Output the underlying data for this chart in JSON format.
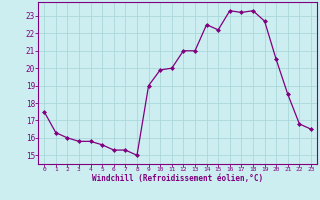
{
  "x": [
    0,
    1,
    2,
    3,
    4,
    5,
    6,
    7,
    8,
    9,
    10,
    11,
    12,
    13,
    14,
    15,
    16,
    17,
    18,
    19,
    20,
    21,
    22,
    23
  ],
  "y": [
    17.5,
    16.3,
    16.0,
    15.8,
    15.8,
    15.6,
    15.3,
    15.3,
    15.0,
    19.0,
    19.9,
    20.0,
    21.0,
    21.0,
    22.5,
    22.2,
    23.3,
    23.2,
    23.3,
    22.7,
    20.5,
    18.5,
    16.8,
    16.5
  ],
  "line_color": "#800080",
  "marker": "D",
  "marker_size": 2.0,
  "bg_color": "#cceef0",
  "grid_color": "#aad8da",
  "xlabel": "Windchill (Refroidissement éolien,°C)",
  "tick_color": "#800080",
  "ylim": [
    14.5,
    23.8
  ],
  "xlim": [
    -0.5,
    23.5
  ],
  "yticks": [
    15,
    16,
    17,
    18,
    19,
    20,
    21,
    22,
    23
  ],
  "xticks": [
    0,
    1,
    2,
    3,
    4,
    5,
    6,
    7,
    8,
    9,
    10,
    11,
    12,
    13,
    14,
    15,
    16,
    17,
    18,
    19,
    20,
    21,
    22,
    23
  ]
}
